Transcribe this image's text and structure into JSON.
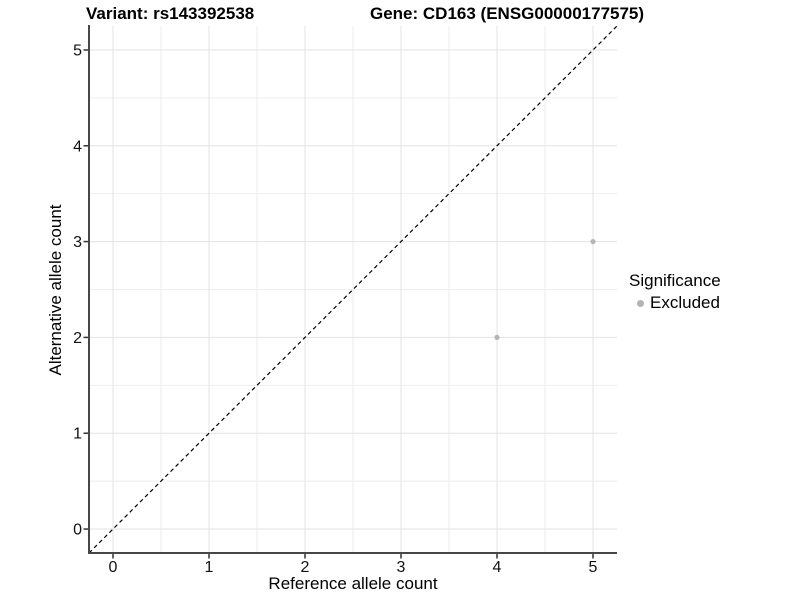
{
  "chart_data": {
    "type": "scatter",
    "title_left": "Variant: rs143392538",
    "title_right": "Gene: CD163 (ENSG00000177575)",
    "xlabel": "Reference allele count",
    "ylabel": "Alternative allele count",
    "xlim": [
      -0.25,
      5.25
    ],
    "ylim": [
      -0.25,
      5.25
    ],
    "xticks": [
      0,
      1,
      2,
      3,
      4,
      5
    ],
    "yticks": [
      0,
      1,
      2,
      3,
      4,
      5
    ],
    "minor_xticks": [
      0.5,
      1.5,
      2.5,
      3.5,
      4.5
    ],
    "minor_yticks": [
      0.5,
      1.5,
      2.5,
      3.5,
      4.5
    ],
    "grid": true,
    "series": [
      {
        "name": "Excluded",
        "color": "#b5b5b5",
        "points": [
          {
            "x": 4,
            "y": 2
          },
          {
            "x": 5,
            "y": 3
          }
        ]
      }
    ],
    "reference_line": {
      "slope": 1,
      "intercept": 0,
      "linestyle": "dashed",
      "color": "#000000"
    },
    "legend": {
      "title": "Significance",
      "position": "right",
      "items": [
        {
          "label": "Excluded",
          "color": "#b3b3b3",
          "marker": "circle"
        }
      ]
    },
    "colors": {
      "grid_major": "#e3e3e3",
      "grid_minor": "#eeeeee",
      "axis_line": "#474747",
      "tick": "#333333",
      "tick_label": "#111111",
      "point": "#b5b5b5"
    }
  }
}
